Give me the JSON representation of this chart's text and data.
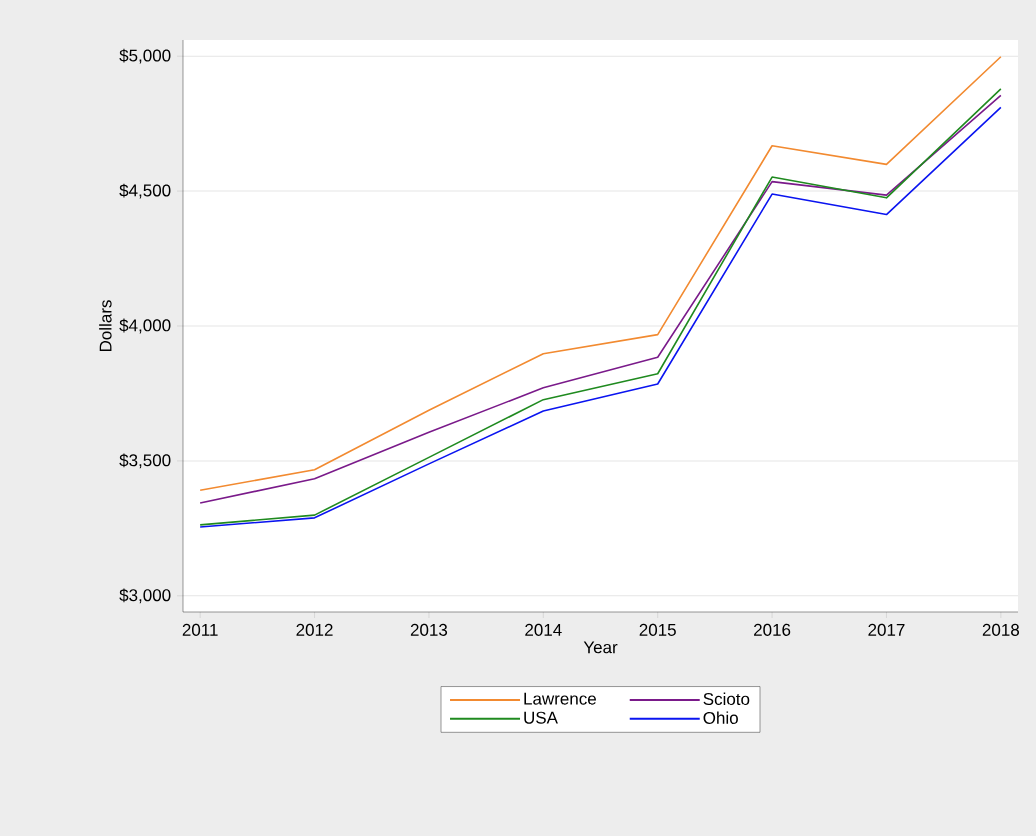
{
  "chart_data": {
    "type": "line",
    "xlabel": "Year",
    "ylabel": "Dollars",
    "x": [
      2011,
      2012,
      2013,
      2014,
      2015,
      2016,
      2017,
      2018
    ],
    "series": [
      {
        "name": "Lawrence",
        "color": "#f28a30",
        "values": [
          3391,
          3467,
          3688,
          3897,
          3968,
          4668,
          4599,
          4998
        ]
      },
      {
        "name": "Scioto",
        "color": "#7a1a8a",
        "values": [
          3344,
          3434,
          3606,
          3771,
          3884,
          4535,
          4485,
          4855
        ]
      },
      {
        "name": "USA",
        "color": "#1f8a1f",
        "values": [
          3263,
          3299,
          3513,
          3727,
          3823,
          4552,
          4475,
          4879
        ]
      },
      {
        "name": "Ohio",
        "color": "#0a14f0",
        "values": [
          3255,
          3289,
          3489,
          3685,
          3785,
          4489,
          4413,
          4810
        ]
      }
    ],
    "xlim": [
      2010.85,
      2018.15
    ],
    "ylim": [
      2940,
      5060
    ],
    "xticks": [
      2011,
      2012,
      2013,
      2014,
      2015,
      2016,
      2017,
      2018
    ],
    "yticks": [
      {
        "value": 3000,
        "label": "$3,000"
      },
      {
        "value": 3500,
        "label": "$3,500"
      },
      {
        "value": 4000,
        "label": "$4,000"
      },
      {
        "value": 4500,
        "label": "$4,500"
      },
      {
        "value": 5000,
        "label": "$5,000"
      }
    ],
    "grid": "y",
    "legend": "bottom",
    "marker": "none",
    "line_style": "solid"
  }
}
